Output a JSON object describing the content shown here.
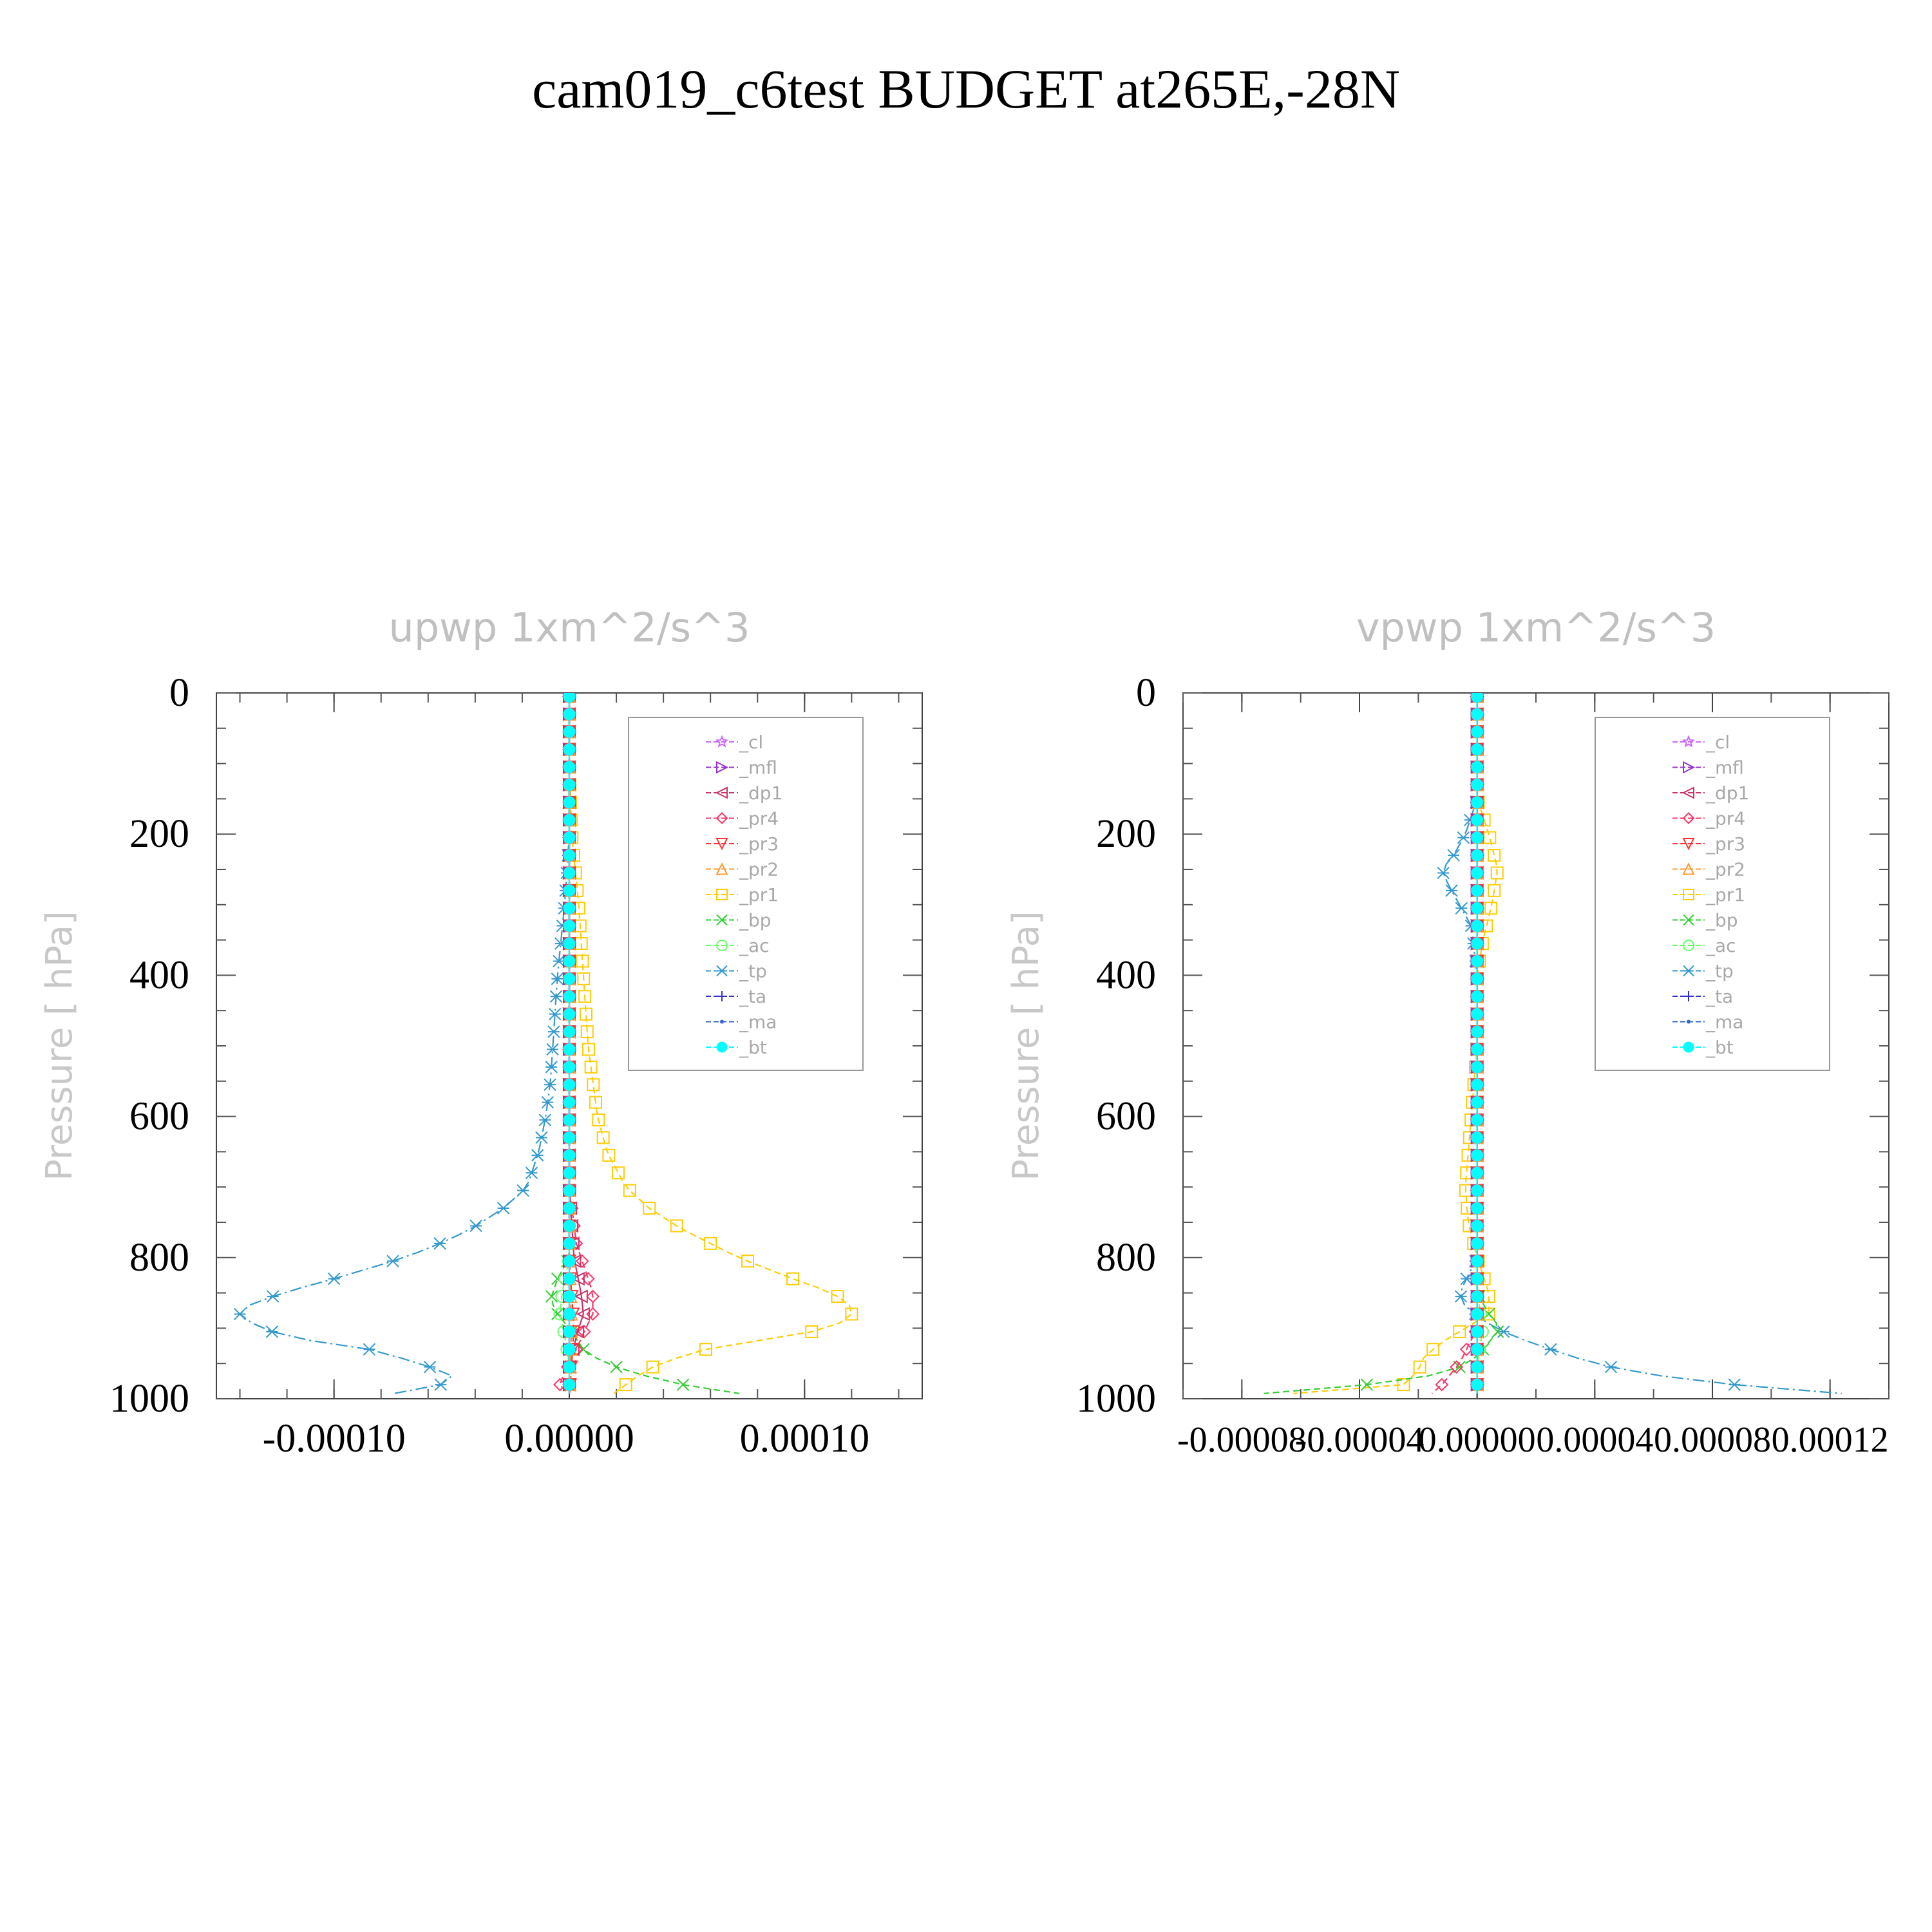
{
  "page_title": "cam019_c6test  BUDGET at265E,-28N",
  "legend_items": [
    {
      "label": "_cl",
      "color": "#cc66ff",
      "marker": "star"
    },
    {
      "label": "_mfl",
      "color": "#9933cc",
      "marker": "tri-right"
    },
    {
      "label": "_dp1",
      "color": "#cc3366",
      "marker": "tri-left"
    },
    {
      "label": "_pr4",
      "color": "#ff3366",
      "marker": "diamond"
    },
    {
      "label": "_pr3",
      "color": "#ff3333",
      "marker": "tri-down"
    },
    {
      "label": "_pr2",
      "color": "#ff9933",
      "marker": "tri-up"
    },
    {
      "label": "_pr1",
      "color": "#ffcc00",
      "marker": "square"
    },
    {
      "label": "_bp",
      "color": "#33cc33",
      "marker": "x"
    },
    {
      "label": "_ac",
      "color": "#66ff66",
      "marker": "circle"
    },
    {
      "label": "_tp",
      "color": "#3399cc",
      "marker": "asterisk"
    },
    {
      "label": "_ta",
      "color": "#3333cc",
      "marker": "plus"
    },
    {
      "label": "_ma",
      "color": "#3366cc",
      "marker": "dot"
    },
    {
      "label": "_bt",
      "color": "#00ffff",
      "marker": "filled-circle"
    }
  ],
  "chart_data": [
    {
      "type": "line",
      "title": "upwp    1xm^2/s^3",
      "ylabel": "Pressure  [ hPa]",
      "xlabel": "",
      "ylim": [
        1000,
        0
      ],
      "xlim": [
        -0.00015,
        0.00015
      ],
      "xticks": [
        "-0.00010",
        "0.00000",
        "0.00010"
      ],
      "xtick_values": [
        -0.0001,
        0.0,
        0.0001
      ],
      "yticks": [
        "0",
        "200",
        "400",
        "600",
        "800",
        "1000"
      ],
      "ytick_values": [
        0,
        200,
        400,
        600,
        800,
        1000
      ],
      "legend_position": "top-right",
      "series": [
        {
          "name": "_tp",
          "p": [
            0,
            100,
            200,
            300,
            400,
            500,
            550,
            600,
            650,
            700,
            730,
            760,
            780,
            800,
            830,
            850,
            870,
            880,
            900,
            915,
            930,
            950,
            970,
            985,
            995
          ],
          "values": [
            0,
            0,
            0,
            -2e-06,
            -5e-06,
            -7e-06,
            -8e-06,
            -1e-05,
            -1.3e-05,
            -1.8e-05,
            -2.8e-05,
            -4.2e-05,
            -5.5e-05,
            -7e-05,
            -0.0001,
            -0.000122,
            -0.000138,
            -0.00014,
            -0.000132,
            -0.000115,
            -8.5e-05,
            -6.3e-05,
            -4.8e-05,
            -5.8e-05,
            -8e-05
          ]
        },
        {
          "name": "_pr1",
          "p": [
            0,
            100,
            200,
            300,
            400,
            500,
            550,
            600,
            650,
            700,
            730,
            760,
            780,
            800,
            830,
            850,
            870,
            880,
            900,
            915,
            930,
            950,
            970,
            985,
            995
          ],
          "values": [
            0,
            0,
            1e-06,
            4e-06,
            6e-06,
            8e-06,
            1e-05,
            1.2e-05,
            1.6e-05,
            2.4e-05,
            3.4e-05,
            4.8e-05,
            6e-05,
            7.2e-05,
            9.5e-05,
            0.000112,
            0.00012,
            0.00012,
            0.000112,
            8.5e-05,
            5.8e-05,
            3.8e-05,
            2.8e-05,
            2.2e-05,
            1.8e-05
          ]
        },
        {
          "name": "_bp",
          "p": [
            0,
            700,
            800,
            830,
            860,
            880,
            900,
            930,
            950,
            970,
            985,
            995
          ],
          "values": [
            0,
            0,
            0,
            -5e-06,
            -8e-06,
            -5e-06,
            0,
            6e-06,
            1.5e-05,
            3.5e-05,
            5.5e-05,
            7.8e-05
          ]
        },
        {
          "name": "_pr4",
          "p": [
            0,
            700,
            780,
            820,
            850,
            880,
            900,
            930,
            950,
            970,
            990,
            1000
          ],
          "values": [
            0,
            0,
            3e-06,
            7e-06,
            1e-05,
            1e-05,
            7e-06,
            3e-06,
            0,
            -3e-06,
            -5e-06,
            1.2e-05
          ]
        },
        {
          "name": "_ac",
          "p": [
            0,
            800,
            850,
            880,
            910,
            950,
            1000
          ],
          "values": [
            0,
            0,
            -3e-06,
            -4e-06,
            -2e-06,
            0,
            0
          ]
        },
        {
          "name": "_dp1",
          "p": [
            0,
            700,
            800,
            850,
            880,
            900,
            950,
            1000
          ],
          "values": [
            0,
            0,
            2e-06,
            5e-06,
            6e-06,
            4e-06,
            0,
            0
          ]
        },
        {
          "name": "_pr3",
          "p": [
            0,
            800,
            900,
            1000
          ],
          "values": [
            0,
            0,
            2e-06,
            0
          ]
        },
        {
          "name": "_pr2",
          "p": [
            0,
            800,
            900,
            1000
          ],
          "values": [
            0,
            0,
            1e-06,
            0
          ]
        },
        {
          "name": "_mfl",
          "p": [
            0,
            1000
          ],
          "values": [
            0,
            0
          ]
        },
        {
          "name": "_cl",
          "p": [
            0,
            1000
          ],
          "values": [
            0,
            0
          ]
        },
        {
          "name": "_ta",
          "p": [
            0,
            1000
          ],
          "values": [
            0,
            0
          ]
        },
        {
          "name": "_ma",
          "p": [
            0,
            1000
          ],
          "values": [
            0,
            0
          ]
        },
        {
          "name": "_bt",
          "p": [
            0,
            1000
          ],
          "values": [
            0,
            0
          ]
        }
      ]
    },
    {
      "type": "line",
      "title": "vpwp    1xm^2/s^3",
      "ylabel": "Pressure  [ hPa]",
      "xlabel": "",
      "ylim": [
        1000,
        0
      ],
      "xlim": [
        -0.0001,
        0.00014
      ],
      "xticks": [
        "-0.00008",
        "-0.00004",
        "0.00000",
        "0.00004",
        "0.00008",
        "0.00012"
      ],
      "xticks_as_printed": [
        "-0.0000",
        "8.0000",
        "4",
        "0.0000",
        "0.0000",
        "4",
        ".0000",
        "8",
        ".0001",
        "2",
        ".0001"
      ],
      "xtick_values": [
        -8e-05,
        -4e-05,
        0.0,
        4e-05,
        8e-05,
        0.00012
      ],
      "yticks": [
        "0",
        "200",
        "400",
        "600",
        "800",
        "1000"
      ],
      "ytick_values": [
        0,
        200,
        400,
        600,
        800,
        1000
      ],
      "legend_position": "top-right",
      "series": [
        {
          "name": "_tp",
          "p": [
            0,
            150,
            200,
            230,
            250,
            270,
            300,
            330,
            400,
            600,
            800,
            850,
            870,
            900,
            920,
            940,
            960,
            975,
            985,
            990,
            995
          ],
          "values": [
            0,
            0,
            -4e-06,
            -8e-06,
            -1.2e-05,
            -1e-05,
            -6e-06,
            -2e-06,
            0,
            0,
            0,
            -6e-06,
            -4e-06,
            6e-06,
            1.8e-05,
            3.2e-05,
            5e-05,
            7.5e-05,
            0.0001,
            0.00012,
            0.000128
          ]
        },
        {
          "name": "_pr1",
          "p": [
            0,
            150,
            200,
            250,
            300,
            350,
            400,
            500,
            600,
            700,
            750,
            800,
            850,
            880,
            900,
            920,
            940,
            960,
            980,
            990,
            995
          ],
          "values": [
            0,
            0,
            4e-06,
            7e-06,
            5e-06,
            2e-06,
            0,
            0,
            -2e-06,
            -4e-06,
            -3e-06,
            0,
            4e-06,
            4e-06,
            -4e-06,
            -1.2e-05,
            -1.8e-05,
            -2e-05,
            -2.5e-05,
            -4.5e-05,
            -8e-05
          ]
        },
        {
          "name": "_bp",
          "p": [
            0,
            850,
            880,
            900,
            920,
            940,
            960,
            975,
            985,
            995
          ],
          "values": [
            0,
            0,
            4e-06,
            8e-06,
            4e-06,
            0,
            -8e-06,
            -2.5e-05,
            -5e-05,
            -8e-05
          ]
        },
        {
          "name": "_pr4",
          "p": [
            0,
            900,
            950,
            980,
            995,
            1000
          ],
          "values": [
            0,
            0,
            -6e-06,
            -1.2e-05,
            -1.6e-05,
            4e-06
          ]
        },
        {
          "name": "_ac",
          "p": [
            0,
            850,
            900,
            950,
            1000
          ],
          "values": [
            0,
            0,
            2e-06,
            0,
            0
          ]
        },
        {
          "name": "_dp1",
          "p": [
            0,
            1000
          ],
          "values": [
            0,
            0
          ]
        },
        {
          "name": "_pr3",
          "p": [
            0,
            1000
          ],
          "values": [
            0,
            0
          ]
        },
        {
          "name": "_pr2",
          "p": [
            0,
            1000
          ],
          "values": [
            0,
            0
          ]
        },
        {
          "name": "_mfl",
          "p": [
            0,
            1000
          ],
          "values": [
            0,
            0
          ]
        },
        {
          "name": "_cl",
          "p": [
            0,
            1000
          ],
          "values": [
            0,
            0
          ]
        },
        {
          "name": "_ta",
          "p": [
            0,
            1000
          ],
          "values": [
            0,
            0
          ]
        },
        {
          "name": "_ma",
          "p": [
            0,
            1000
          ],
          "values": [
            0,
            0
          ]
        },
        {
          "name": "_bt",
          "p": [
            0,
            1000
          ],
          "values": [
            0,
            0
          ]
        }
      ]
    }
  ]
}
